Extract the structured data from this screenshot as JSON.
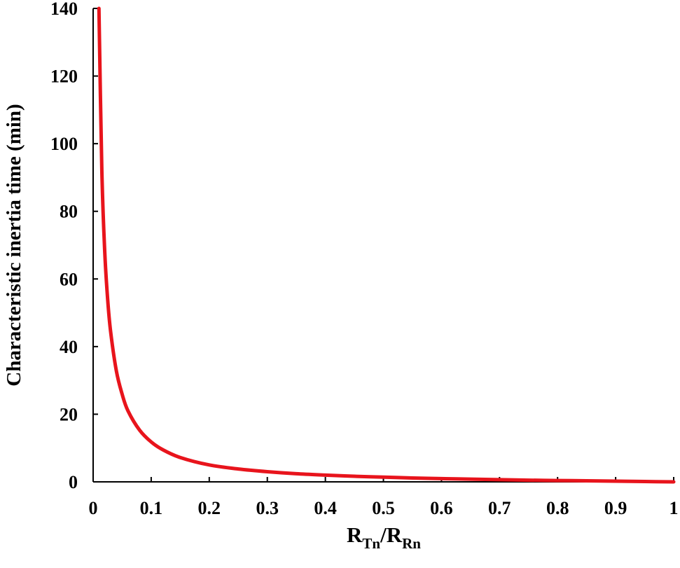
{
  "chart_data": {
    "type": "line",
    "title": "",
    "ylabel": "Characteristic inertia time (min)",
    "xlabel": {
      "main1": "R",
      "sub1": "Tn",
      "slash": "/",
      "main2": "R",
      "sub2": "Rn"
    },
    "xlim": [
      0,
      1
    ],
    "ylim": [
      0,
      140
    ],
    "xticks": [
      0,
      0.1,
      0.2,
      0.3,
      0.4,
      0.5,
      0.6,
      0.7,
      0.8,
      0.9,
      1
    ],
    "xtick_labels": [
      "0",
      "0.1",
      "0.2",
      "0.3",
      "0.4",
      "0.5",
      "0.6",
      "0.7",
      "0.8",
      "0.9",
      "1"
    ],
    "yticks": [
      0,
      20,
      40,
      60,
      80,
      100,
      120,
      140
    ],
    "ytick_labels": [
      "0",
      "20",
      "40",
      "60",
      "80",
      "100",
      "120",
      "140"
    ],
    "grid": false,
    "series": [
      {
        "color": "#e8141c",
        "x": [
          0.01,
          0.015,
          0.02,
          0.025,
          0.03,
          0.04,
          0.05,
          0.06,
          0.08,
          0.1,
          0.12,
          0.15,
          0.2,
          0.25,
          0.3,
          0.35,
          0.4,
          0.45,
          0.5,
          0.55,
          0.6,
          0.65,
          0.7,
          0.75,
          0.8,
          0.85,
          0.9,
          0.95,
          1.0
        ],
        "y": [
          140,
          92,
          68,
          54,
          44.6,
          32.8,
          25.9,
          21.0,
          15.3,
          11.8,
          9.5,
          7.2,
          5.0,
          3.8,
          3.0,
          2.4,
          2.0,
          1.65,
          1.4,
          1.15,
          0.95,
          0.8,
          0.65,
          0.5,
          0.4,
          0.3,
          0.2,
          0.1,
          0.0
        ]
      }
    ]
  }
}
